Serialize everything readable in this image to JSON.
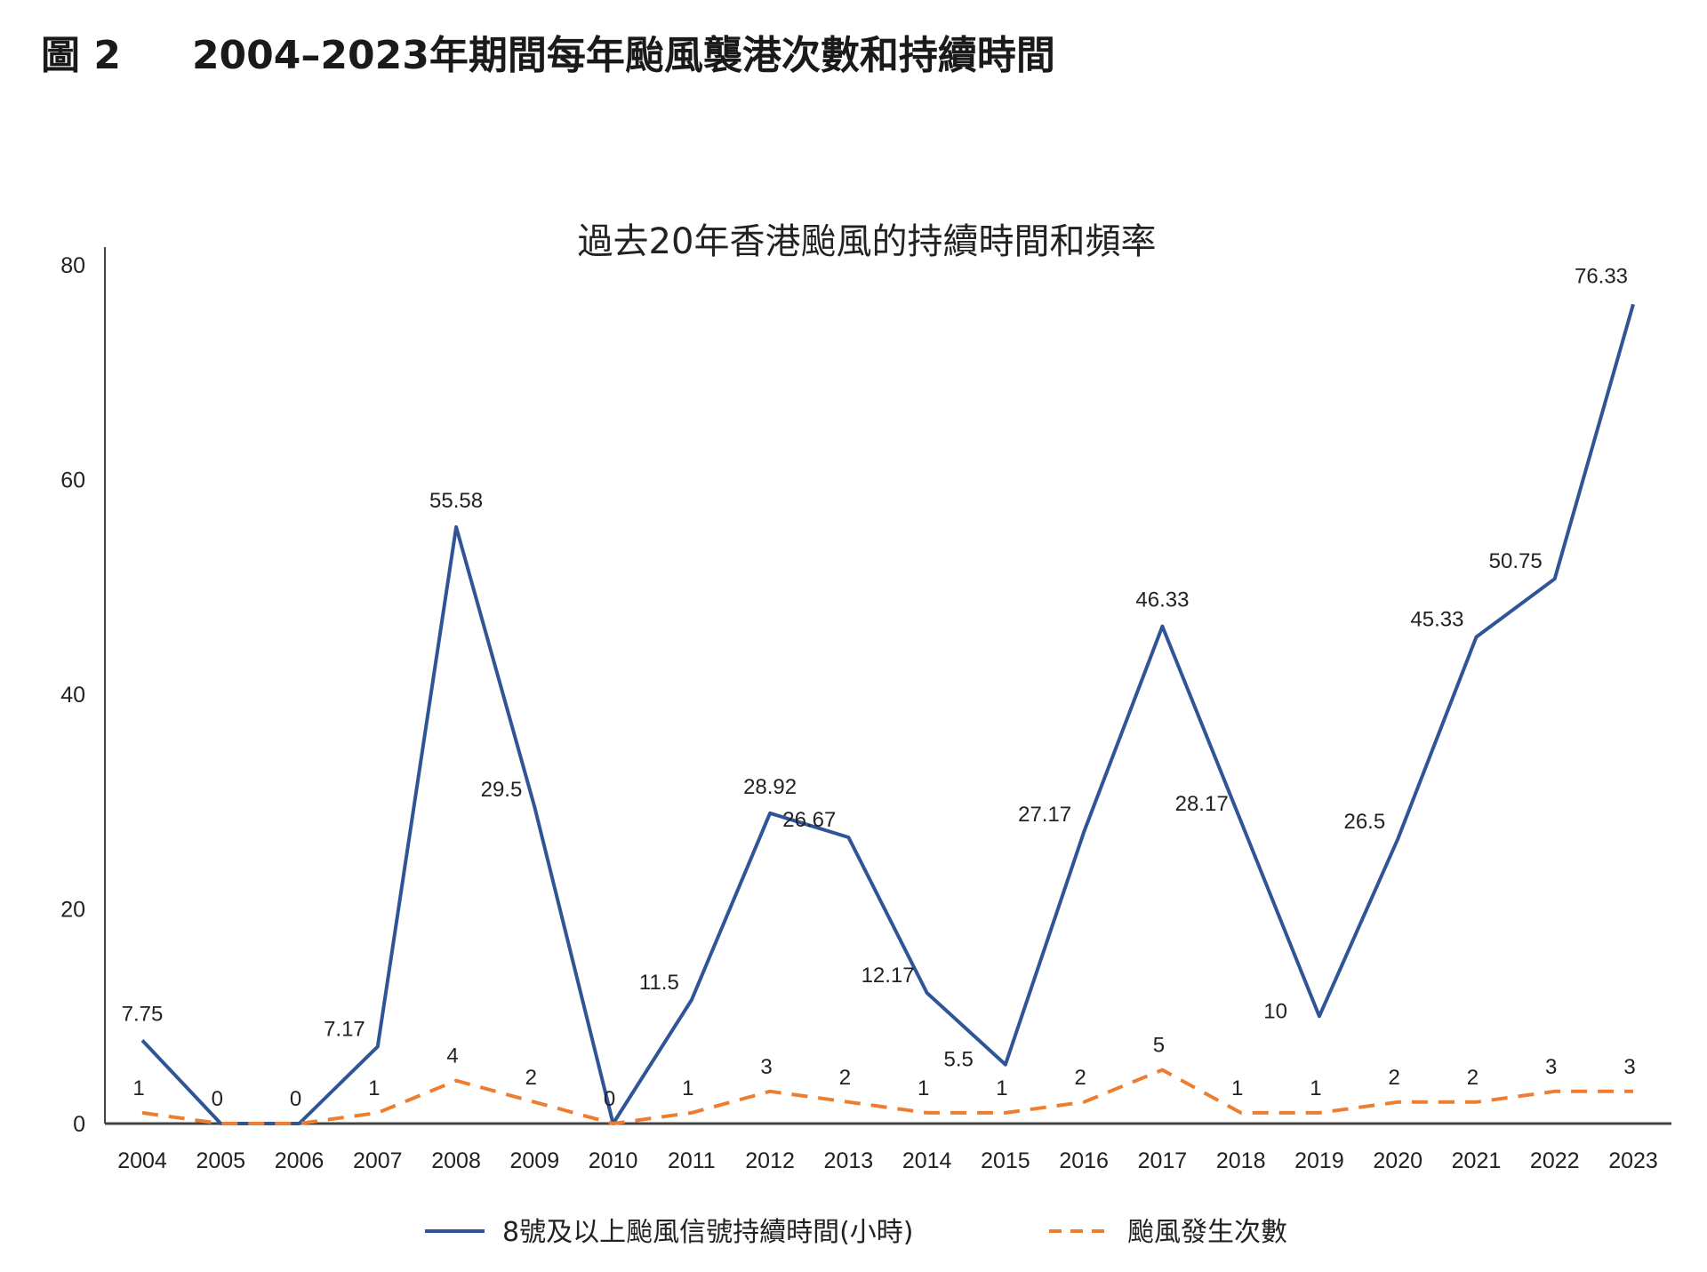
{
  "figure": {
    "label": "圖 2",
    "title": "2004–2023年期間每年颱風襲港次數和持續時間"
  },
  "colors": {
    "duration": "#2f5597",
    "count": "#ed7d31",
    "axis": "#444444",
    "text": "#222222"
  },
  "chart_data": {
    "type": "line",
    "title": "過去20年香港颱風的持續時間和頻率",
    "xlabel": "",
    "ylabel": "",
    "ylim": [
      0,
      80
    ],
    "yticks": [
      0,
      20,
      40,
      60,
      80
    ],
    "grid": false,
    "legend_position": "bottom",
    "categories": [
      "2004",
      "2005",
      "2006",
      "2007",
      "2008",
      "2009",
      "2010",
      "2011",
      "2012",
      "2013",
      "2014",
      "2015",
      "2016",
      "2017",
      "2018",
      "2019",
      "2020",
      "2021",
      "2022",
      "2023"
    ],
    "series": [
      {
        "name": "8號及以上颱風信號持續時間(小時)",
        "style": "solid",
        "values": [
          7.75,
          0,
          0,
          7.17,
          55.58,
          29.5,
          0,
          11.5,
          28.92,
          26.67,
          12.17,
          5.5,
          27.17,
          46.33,
          28.17,
          10,
          26.5,
          45.33,
          50.75,
          76.33
        ],
        "labels": [
          "7.75",
          "",
          "",
          "7.17",
          "55.58",
          "29.5",
          "",
          "11.5",
          "28.92",
          "26.67",
          "12.17",
          "5.5",
          "27.17",
          "46.33",
          "28.17",
          "10",
          "26.5",
          "45.33",
          "50.75",
          "76.33"
        ]
      },
      {
        "name": "颱風發生次數",
        "style": "dashed",
        "values": [
          1,
          0,
          0,
          1,
          4,
          2,
          0,
          1,
          3,
          2,
          1,
          1,
          2,
          5,
          1,
          1,
          2,
          2,
          3,
          3
        ],
        "labels": [
          "1",
          "0",
          "0",
          "1",
          "4",
          "2",
          "0",
          "1",
          "3",
          "2",
          "1",
          "1",
          "2",
          "5",
          "1",
          "1",
          "2",
          "2",
          "3",
          "3"
        ]
      }
    ]
  }
}
